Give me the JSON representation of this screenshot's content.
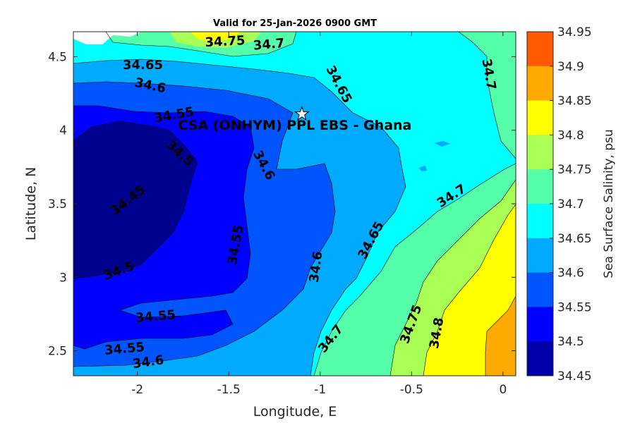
{
  "title": "Valid for 25-Jan-2026 0900 GMT",
  "site_label": "CSA (ONHYM) PPL EBS  - Ghana",
  "site": {
    "lon": -1.1,
    "lat": 4.11,
    "marker": "star-icon"
  },
  "map_data": {
    "type": "filled-contour",
    "quantity": "Sea Surface Salinity",
    "xlabel": "Longitude, E",
    "ylabel": "Latitude, N",
    "xlim": [
      -2.35,
      0.07
    ],
    "ylim": [
      2.33,
      4.67
    ],
    "x_ticks": [
      -2,
      -1.5,
      -1,
      -0.5,
      0
    ],
    "x_tick_labels": [
      "-2",
      "-1.5",
      "-1",
      "-0.5",
      "0"
    ],
    "y_ticks": [
      2.5,
      3,
      3.5,
      4,
      4.5
    ],
    "y_tick_labels": [
      "2.5",
      "3",
      "3.5",
      "4",
      "4.5"
    ],
    "contour_labels": [
      {
        "text": "34.75",
        "lon": -1.52,
        "lat": 4.6,
        "angle": -3
      },
      {
        "text": "34.7",
        "lon": -1.28,
        "lat": 4.58,
        "angle": -5
      },
      {
        "text": "34.65",
        "lon": -1.97,
        "lat": 4.44,
        "angle": 0
      },
      {
        "text": "34.6",
        "lon": -1.93,
        "lat": 4.3,
        "angle": 12
      },
      {
        "text": "34.55",
        "lon": -1.8,
        "lat": 4.1,
        "angle": -10
      },
      {
        "text": "34.65",
        "lon": -0.9,
        "lat": 4.31,
        "angle": 62
      },
      {
        "text": "34.7",
        "lon": -0.08,
        "lat": 4.38,
        "angle": 80
      },
      {
        "text": "34.5",
        "lon": -1.77,
        "lat": 3.84,
        "angle": 42
      },
      {
        "text": "34.6",
        "lon": -1.31,
        "lat": 3.76,
        "angle": 62
      },
      {
        "text": "34.45",
        "lon": -2.05,
        "lat": 3.52,
        "angle": -38
      },
      {
        "text": "34.55",
        "lon": -1.46,
        "lat": 3.22,
        "angle": -80
      },
      {
        "text": "34.65",
        "lon": -0.72,
        "lat": 3.25,
        "angle": -62
      },
      {
        "text": "34.7",
        "lon": -0.28,
        "lat": 3.55,
        "angle": -33
      },
      {
        "text": "34.6",
        "lon": -1.02,
        "lat": 3.07,
        "angle": -82
      },
      {
        "text": "34.5",
        "lon": -2.1,
        "lat": 3.04,
        "angle": -20
      },
      {
        "text": "34.55",
        "lon": -1.9,
        "lat": 2.73,
        "angle": -5
      },
      {
        "text": "34.55",
        "lon": -2.07,
        "lat": 2.51,
        "angle": -5
      },
      {
        "text": "34.6",
        "lon": -1.94,
        "lat": 2.42,
        "angle": -8
      },
      {
        "text": "34.7",
        "lon": -0.94,
        "lat": 2.58,
        "angle": -52
      },
      {
        "text": "34.75",
        "lon": -0.5,
        "lat": 2.68,
        "angle": -70
      },
      {
        "text": "34.8",
        "lon": -0.36,
        "lat": 2.62,
        "angle": -80
      }
    ]
  },
  "colorbar": {
    "label": "Sea Surface Salinity, psu",
    "levels": [
      "34.95",
      "34.9",
      "34.85",
      "34.8",
      "34.75",
      "34.7",
      "34.65",
      "34.6",
      "34.55",
      "34.5",
      "34.45"
    ],
    "colors": [
      "#ff5a00",
      "#ffaa00",
      "#ffff00",
      "#aaff55",
      "#55ffaa",
      "#00ffff",
      "#00aaff",
      "#0055ff",
      "#0000ff",
      "#0000aa"
    ]
  },
  "region_colors": {
    "c34_45": "#00008f",
    "c34_50": "#0000ff",
    "c34_55": "#0055ff",
    "c34_60": "#00aaff",
    "c34_65": "#00ffff",
    "c34_70": "#55ffaa",
    "c34_75": "#aaff55",
    "c34_80": "#ffff00",
    "c34_85": "#ffaa00",
    "land": "#ffffff"
  }
}
